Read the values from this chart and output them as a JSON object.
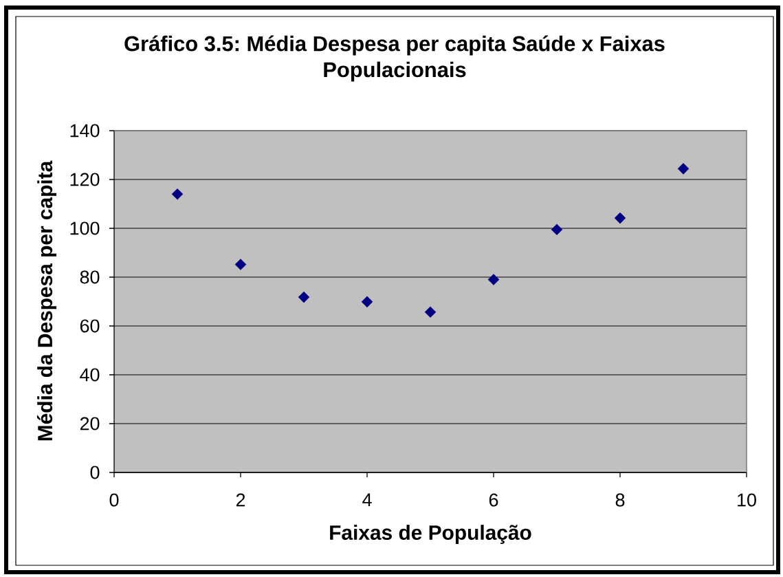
{
  "chart_data": {
    "type": "scatter",
    "title": "Gráfico 3.5: Média Despesa per capita Saúde x Faixas Populacionais",
    "xlabel": "Faixas de População",
    "ylabel": "Média da Despesa per capita",
    "x": [
      1,
      2,
      3,
      4,
      5,
      6,
      7,
      8,
      9
    ],
    "values": [
      114,
      85.2,
      71.8,
      69.9,
      65.7,
      79,
      99.5,
      104.2,
      124.4
    ],
    "color": "#000080",
    "marker": "diamond",
    "xlim": [
      0,
      10
    ],
    "ylim": [
      0,
      140
    ],
    "xticks": [
      0,
      2,
      4,
      6,
      8,
      10
    ],
    "yticks": [
      0,
      20,
      40,
      60,
      80,
      100,
      120,
      140
    ],
    "grid": "y"
  }
}
